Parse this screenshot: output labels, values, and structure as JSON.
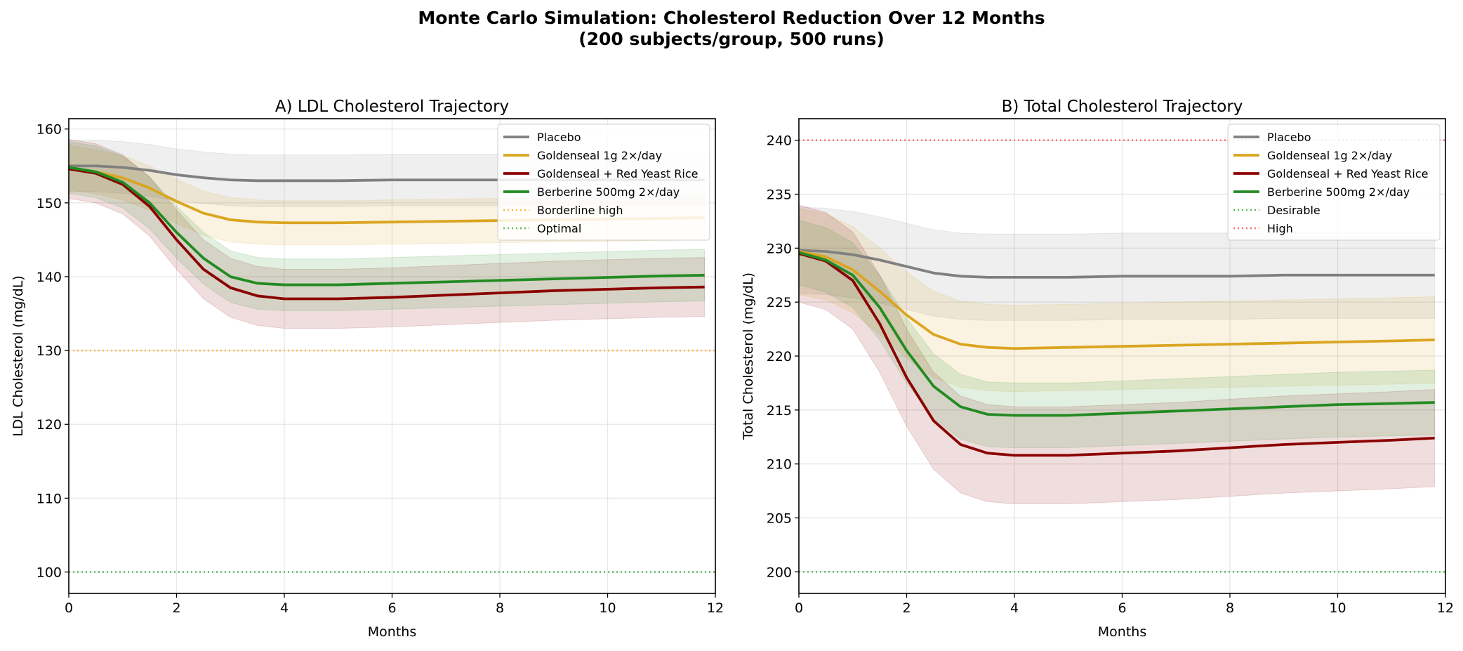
{
  "title_line1": "Monte Carlo Simulation: Cholesterol Reduction Over 12 Months",
  "title_line2": "(200 subjects/group, 500 runs)",
  "chart_data": [
    {
      "type": "line",
      "title": "A) LDL Cholesterol Trajectory",
      "xlabel": "Months",
      "ylabel": "LDL Cholesterol (mg/dL)",
      "xlim": [
        0,
        12
      ],
      "ylim": [
        97.1,
        161.4
      ],
      "xticks": [
        0,
        2,
        4,
        6,
        8,
        10,
        12
      ],
      "yticks": [
        100,
        110,
        120,
        130,
        140,
        150,
        160
      ],
      "grid": true,
      "legend": "top-right",
      "x": [
        0,
        0.5,
        1,
        1.5,
        2,
        2.5,
        3,
        3.5,
        4,
        5,
        6,
        7,
        8,
        9,
        10,
        11,
        11.8
      ],
      "series": [
        {
          "name": "Placebo",
          "color": "#808080",
          "band": 3.5,
          "values": [
            155,
            155,
            154.8,
            154.4,
            153.8,
            153.4,
            153.1,
            153.0,
            153.0,
            153.0,
            153.1,
            153.1,
            153.1,
            153.1,
            153.1,
            153.1,
            153.1
          ]
        },
        {
          "name": "Goldenseal 1g 2×/day",
          "color": "#DAA520",
          "band": 3.0,
          "values": [
            154.8,
            154.2,
            153.4,
            152,
            150.2,
            148.6,
            147.7,
            147.4,
            147.3,
            147.3,
            147.4,
            147.5,
            147.6,
            147.7,
            147.8,
            147.9,
            148.0
          ]
        },
        {
          "name": "Goldenseal + Red Yeast Rice",
          "color": "#8B0000",
          "band": 4.0,
          "values": [
            154.6,
            154,
            152.5,
            149.5,
            145,
            141,
            138.5,
            137.4,
            137.0,
            137.0,
            137.2,
            137.5,
            137.8,
            138.1,
            138.3,
            138.5,
            138.6
          ]
        },
        {
          "name": "Berberine 500mg 2×/day",
          "color": "#228B22",
          "band": 3.5,
          "values": [
            154.8,
            154.2,
            152.8,
            150,
            146,
            142.5,
            140,
            139.1,
            138.9,
            138.9,
            139.1,
            139.3,
            139.5,
            139.7,
            139.9,
            140.1,
            140.2
          ]
        }
      ],
      "reference_lines": [
        {
          "name": "Borderline high",
          "value": 130,
          "color": "#FFB347"
        },
        {
          "name": "Optimal",
          "value": 100,
          "color": "#5CB85C"
        }
      ]
    },
    {
      "type": "line",
      "title": "B) Total Cholesterol Trajectory",
      "xlabel": "Months",
      "ylabel": "Total Cholesterol (mg/dL)",
      "xlim": [
        0,
        12
      ],
      "ylim": [
        198,
        242
      ],
      "xticks": [
        0,
        2,
        4,
        6,
        8,
        10,
        12
      ],
      "yticks": [
        200,
        205,
        210,
        215,
        220,
        225,
        230,
        235,
        240
      ],
      "grid": true,
      "legend": "top-right",
      "x": [
        0,
        0.5,
        1,
        1.5,
        2,
        2.5,
        3,
        3.5,
        4,
        5,
        6,
        7,
        8,
        9,
        10,
        11,
        11.8
      ],
      "series": [
        {
          "name": "Placebo",
          "color": "#808080",
          "band": 4.0,
          "values": [
            229.8,
            229.7,
            229.4,
            228.9,
            228.3,
            227.7,
            227.4,
            227.3,
            227.3,
            227.3,
            227.4,
            227.4,
            227.4,
            227.5,
            227.5,
            227.5,
            227.5
          ]
        },
        {
          "name": "Goldenseal 1g 2×/day",
          "color": "#DAA520",
          "band": 4.0,
          "values": [
            229.7,
            229.2,
            228,
            226,
            223.8,
            222,
            221.1,
            220.8,
            220.7,
            220.8,
            220.9,
            221,
            221.1,
            221.2,
            221.3,
            221.4,
            221.5
          ]
        },
        {
          "name": "Goldenseal + Red Yeast Rice",
          "color": "#8B0000",
          "band": 4.5,
          "values": [
            229.5,
            228.8,
            227,
            223,
            218,
            214,
            211.8,
            211,
            210.8,
            210.8,
            211,
            211.2,
            211.5,
            211.8,
            212,
            212.2,
            212.4
          ]
        },
        {
          "name": "Berberine 500mg 2×/day",
          "color": "#228B22",
          "band": 3.0,
          "values": [
            229.6,
            228.9,
            227.5,
            224.5,
            220.5,
            217.2,
            215.3,
            214.6,
            214.5,
            214.5,
            214.7,
            214.9,
            215.1,
            215.3,
            215.5,
            215.6,
            215.7
          ]
        }
      ],
      "reference_lines": [
        {
          "name": "Desirable",
          "value": 200,
          "color": "#5CB85C"
        },
        {
          "name": "High",
          "value": 240,
          "color": "#FF6B6B"
        }
      ]
    }
  ]
}
